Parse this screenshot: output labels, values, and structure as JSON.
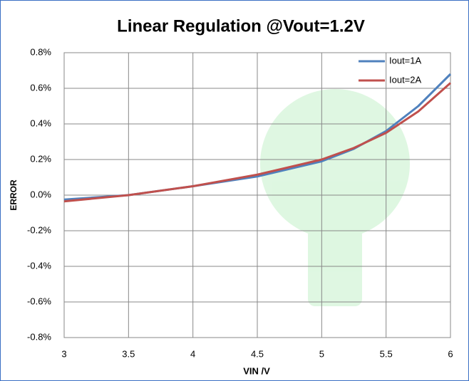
{
  "chart_data": {
    "type": "line",
    "title": "Linear Regulation  @Vout=1.2V",
    "xlabel": "VIN /V",
    "ylabel": "ERROR",
    "x": [
      3,
      3.5,
      4,
      4.5,
      5,
      5.25,
      5.5,
      5.75,
      6
    ],
    "series": [
      {
        "name": "Iout=1A",
        "color": "#4f81bd",
        "values": [
          -0.025,
          0,
          0.05,
          0.105,
          0.19,
          0.26,
          0.36,
          0.5,
          0.68
        ]
      },
      {
        "name": "Iout=2A",
        "color": "#c0504d",
        "values": [
          -0.035,
          0,
          0.05,
          0.115,
          0.2,
          0.265,
          0.35,
          0.47,
          0.63
        ]
      }
    ],
    "xlim": [
      3,
      6
    ],
    "xticks": [
      3,
      3.5,
      4,
      4.5,
      5,
      5.5,
      6
    ],
    "ylim": [
      -0.8,
      0.8
    ],
    "yticks": [
      {
        "value": -0.8,
        "label": "-0.8%"
      },
      {
        "value": -0.6,
        "label": "-0.6%"
      },
      {
        "value": -0.4,
        "label": "-0.4%"
      },
      {
        "value": -0.2,
        "label": "-0.2%"
      },
      {
        "value": 0,
        "label": "0.0%"
      },
      {
        "value": 0.2,
        "label": "0.2%"
      },
      {
        "value": 0.4,
        "label": "0.4%"
      },
      {
        "value": 0.6,
        "label": "0.6%"
      },
      {
        "value": 0.8,
        "label": "0.8%"
      }
    ],
    "grid": true,
    "legend": "upper-right"
  }
}
